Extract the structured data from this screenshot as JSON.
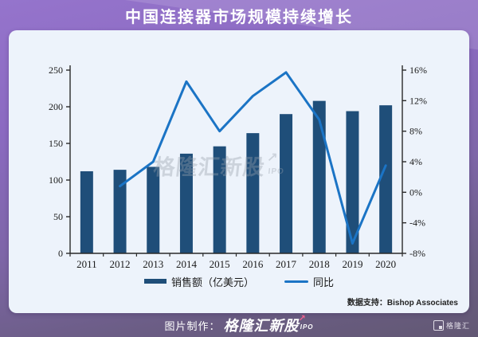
{
  "title": "中国连接器市场规模持续增长",
  "watermark": {
    "text": "格隆汇新股",
    "arrow": "↗",
    "sub": "IPO"
  },
  "chart_data": {
    "type": "bar+line-combo",
    "categories": [
      "2011",
      "2012",
      "2013",
      "2014",
      "2015",
      "2016",
      "2017",
      "2018",
      "2019",
      "2020"
    ],
    "series": [
      {
        "name": "销售额（亿美元）",
        "type": "bar",
        "axis": "left",
        "color": "#1f4e79",
        "values": [
          112,
          114,
          118,
          136,
          146,
          164,
          190,
          208,
          194,
          202
        ]
      },
      {
        "name": "同比",
        "type": "line",
        "axis": "right",
        "color": "#1b74c5",
        "values": [
          null,
          0.8,
          4.0,
          14.5,
          8.0,
          12.6,
          15.7,
          9.5,
          -6.7,
          3.5
        ]
      }
    ],
    "left_axis": {
      "min": 0,
      "max": 250,
      "ticks": [
        0,
        50,
        100,
        150,
        200,
        250
      ]
    },
    "right_axis": {
      "min": -8,
      "max": 16,
      "tick_values": [
        -8,
        -4,
        0,
        4,
        8,
        12,
        16
      ],
      "tick_labels": [
        "-8%",
        "-4%",
        "0%",
        "4%",
        "8%",
        "12%",
        "16%"
      ]
    },
    "grid": false,
    "legend_position": "bottom",
    "title": "中国连接器市场规模持续增长"
  },
  "source": {
    "label": "数据支持：",
    "name": "Bishop Associates"
  },
  "footer": {
    "credit_label": "图片制作：",
    "brand": "格隆汇新股",
    "brand_arrow": "↗",
    "brand_sub": "IPO",
    "logo_text": "格隆汇"
  },
  "colors": {
    "bar": "#1f4e79",
    "line": "#1b74c5",
    "card_bg": "#edf3fb",
    "accent_pink": "#f0618f",
    "bg_top": "#9574cc",
    "bg_bottom": "#625873"
  }
}
